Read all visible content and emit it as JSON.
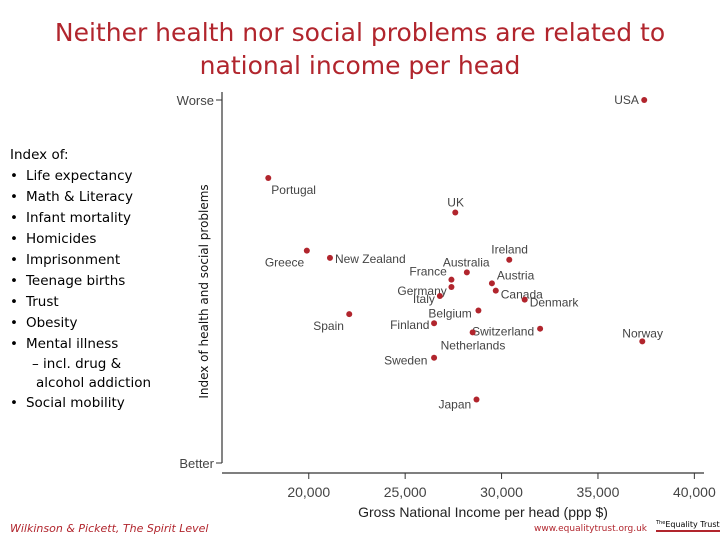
{
  "title_lines": [
    "Neither health nor social problems are related to",
    "national income per head"
  ],
  "index_box": {
    "heading": "Index of:",
    "items": [
      "Life expectancy",
      "Math & Literacy",
      "Infant mortality",
      "Homicides",
      "Imprisonment",
      "Teenage births",
      "Trust",
      "Obesity",
      "Mental illness"
    ],
    "mental_illness_sub1": "– incl. drug &",
    "mental_illness_sub2": "alcohol addiction",
    "last_item": "Social mobility"
  },
  "footer": {
    "source": "Wilkinson & Pickett, The Spirit Level",
    "url": "www.equalitytrust.org.uk",
    "logo_prefix": "The",
    "logo_text": "Equality Trust"
  },
  "colors": {
    "title": "#b1252d",
    "point": "#b1252d",
    "axis": "#333333",
    "label": "#444444"
  },
  "chart_data": {
    "type": "scatter",
    "title": "",
    "xlabel": "Gross National Income per head (ppp $)",
    "ylabel": "Index of health and social problems",
    "xlim": [
      15500,
      40500
    ],
    "ylim": [
      0,
      100
    ],
    "x_ticks": [
      20000,
      25000,
      30000,
      35000,
      40000
    ],
    "x_tick_labels": [
      "20,000",
      "25,000",
      "30,000",
      "35,000",
      "40,000"
    ],
    "y_ticks": [
      0,
      100
    ],
    "y_tick_labels": [
      "Better",
      "Worse"
    ],
    "grid": false,
    "points": [
      {
        "label": "USA",
        "x": 37400,
        "y": 100,
        "anchor": "left",
        "dx": -30,
        "dy": 0
      },
      {
        "label": "Portugal",
        "x": 17900,
        "y": 78.5,
        "anchor": "right",
        "dx": 3,
        "dy": 12
      },
      {
        "label": "UK",
        "x": 27600,
        "y": 69,
        "anchor": "left",
        "dx": -8,
        "dy": -10
      },
      {
        "label": "Greece",
        "x": 19900,
        "y": 58.5,
        "anchor": "left",
        "dx": -42,
        "dy": 12
      },
      {
        "label": "New Zealand",
        "x": 21100,
        "y": 56.5,
        "anchor": "right",
        "dx": 5,
        "dy": 1
      },
      {
        "label": "Ireland",
        "x": 30400,
        "y": 56,
        "anchor": "left",
        "dx": -18,
        "dy": -10
      },
      {
        "label": "Australia",
        "x": 28200,
        "y": 52.5,
        "anchor": "left",
        "dx": -24,
        "dy": -10
      },
      {
        "label": "France",
        "x": 27400,
        "y": 50.5,
        "anchor": "left",
        "dx": -42,
        "dy": -8
      },
      {
        "label": "Germany",
        "x": 27400,
        "y": 48.5,
        "anchor": "left",
        "dx": -54,
        "dy": 4
      },
      {
        "label": "Austria",
        "x": 29500,
        "y": 49.5,
        "anchor": "right",
        "dx": 5,
        "dy": -8
      },
      {
        "label": "Canada",
        "x": 29700,
        "y": 47.5,
        "anchor": "right",
        "dx": 5,
        "dy": 4
      },
      {
        "label": "Italy",
        "x": 26800,
        "y": 46,
        "anchor": "left",
        "dx": -27,
        "dy": 3
      },
      {
        "label": "Denmark",
        "x": 31200,
        "y": 45,
        "anchor": "right",
        "dx": 5,
        "dy": 3
      },
      {
        "label": "Belgium",
        "x": 28800,
        "y": 42,
        "anchor": "left",
        "dx": -50,
        "dy": 3
      },
      {
        "label": "Spain",
        "x": 22100,
        "y": 41,
        "anchor": "left",
        "dx": -36,
        "dy": 12
      },
      {
        "label": "Finland",
        "x": 26500,
        "y": 38.5,
        "anchor": "left",
        "dx": -44,
        "dy": 2
      },
      {
        "label": "Switzerland",
        "x": 32000,
        "y": 37,
        "anchor": "left",
        "dx": -68,
        "dy": 3
      },
      {
        "label": "Netherlands",
        "x": 28500,
        "y": 36,
        "anchor": "left",
        "dx": -32,
        "dy": 13
      },
      {
        "label": "Norway",
        "x": 37300,
        "y": 33.5,
        "anchor": "left",
        "dx": -20,
        "dy": -8
      },
      {
        "label": "Sweden",
        "x": 26500,
        "y": 29,
        "anchor": "left",
        "dx": -50,
        "dy": 3
      },
      {
        "label": "Japan",
        "x": 28700,
        "y": 17.5,
        "anchor": "left",
        "dx": -38,
        "dy": 5
      }
    ]
  }
}
